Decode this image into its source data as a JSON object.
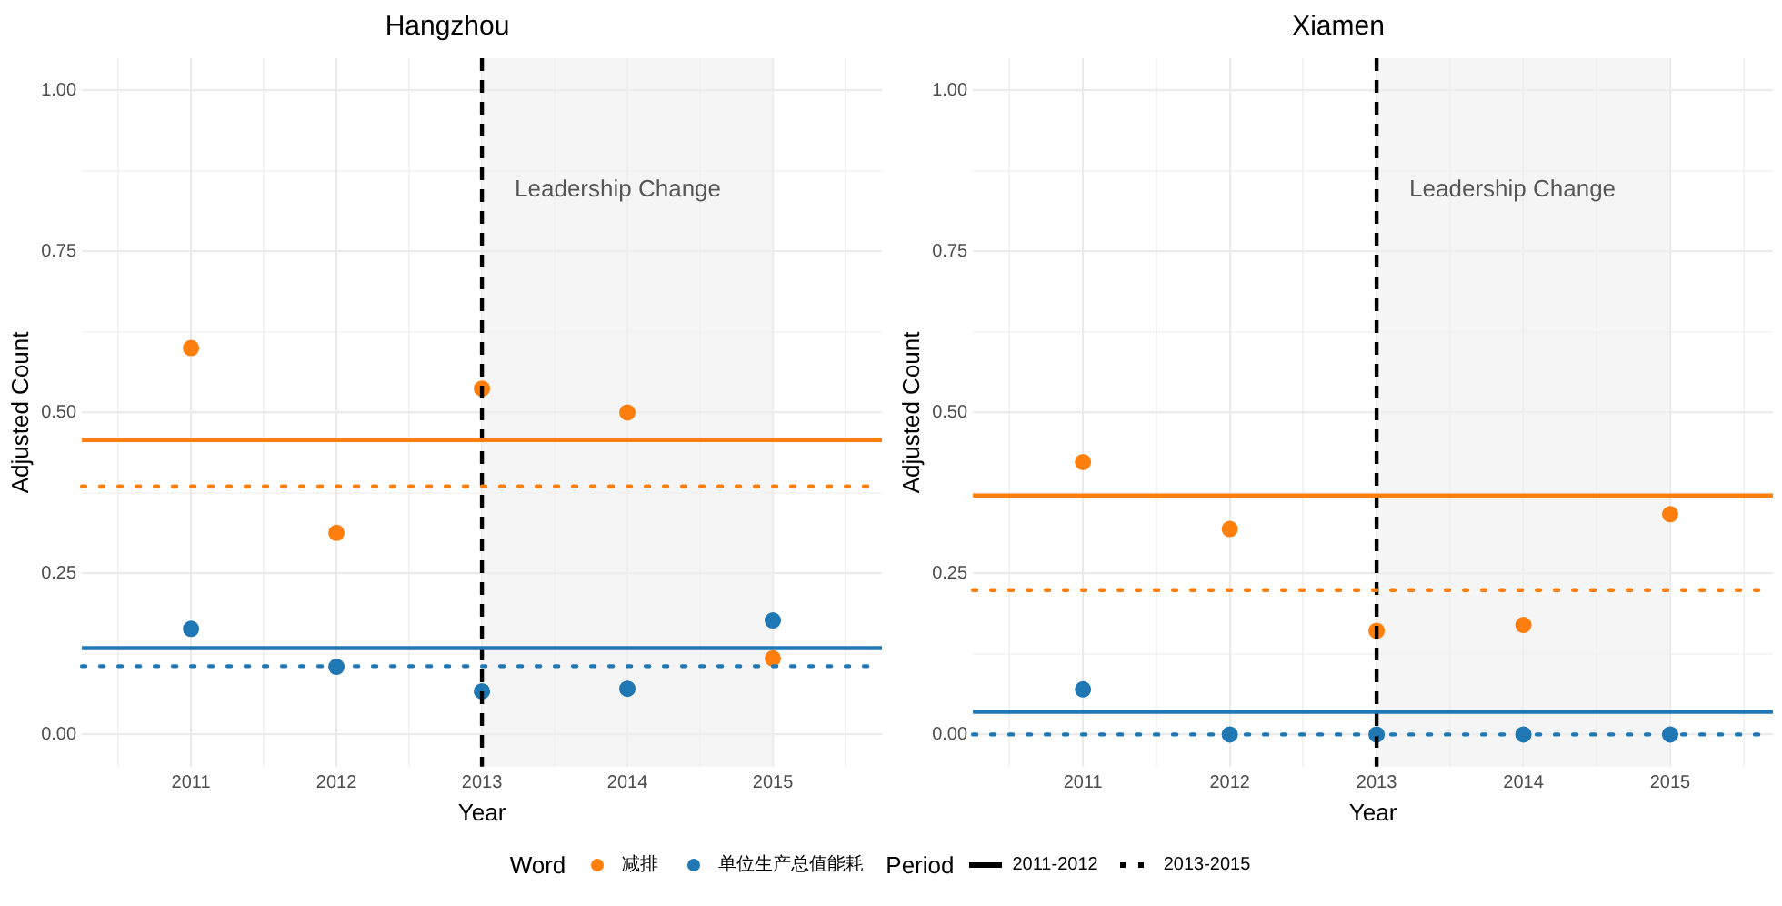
{
  "chart_data": [
    {
      "type": "scatter",
      "title": "Hangzhou",
      "xlabel": "Year",
      "ylabel": "Adjusted Count",
      "legend": "bottom",
      "legend_title": "Word",
      "grid": true,
      "marker": "circle",
      "x": [
        2011,
        2012,
        2013,
        2014,
        2015
      ],
      "xlim": [
        2010.25,
        2015.75
      ],
      "xticks": [
        {
          "value": 2010.5,
          "label": null
        },
        2011,
        {
          "value": 2011.5,
          "label": null
        },
        2012,
        {
          "value": 2012.5,
          "label": null
        },
        2013,
        {
          "value": 2013.5,
          "label": null
        },
        2014,
        {
          "value": 2014.5,
          "label": null
        },
        2015,
        {
          "value": 2015.5,
          "label": null
        }
      ],
      "ylim": [
        -0.05,
        1.05
      ],
      "yticks": [
        {
          "value": 0,
          "label": "0.00"
        },
        {
          "value": 0.125,
          "label": null
        },
        {
          "value": 0.25,
          "label": "0.25"
        },
        {
          "value": 0.375,
          "label": null
        },
        {
          "value": 0.5,
          "label": "0.50"
        },
        {
          "value": 0.625,
          "label": null
        },
        {
          "value": 0.75,
          "label": "0.75"
        },
        {
          "value": 0.875,
          "label": null
        },
        {
          "value": 1,
          "label": "1.00"
        }
      ],
      "series": [
        {
          "name": "减排",
          "color": "#ff7f0e",
          "values": [
            0.6,
            0.313,
            0.537,
            0.5,
            0.118
          ]
        },
        {
          "name": "单位生产总值能耗",
          "color": "#1f77b4",
          "values": [
            0.164,
            0.105,
            0.067,
            0.071,
            0.177
          ]
        }
      ],
      "ref_lines": [
        {
          "axis": "x",
          "value": 2013,
          "color": "#000000",
          "line_style": "dashed"
        },
        {
          "axis": "y",
          "value": 0.457,
          "color": "#ff7f0e",
          "line_style": "solid"
        },
        {
          "axis": "y",
          "value": 0.385,
          "color": "#ff7f0e",
          "line_style": "dotted"
        },
        {
          "axis": "y",
          "value": 0.134,
          "color": "#1f77b4",
          "line_style": "solid"
        },
        {
          "axis": "y",
          "value": 0.106,
          "color": "#1f77b4",
          "line_style": "dotted"
        }
      ],
      "bands": [
        {
          "axis": "x",
          "from": 2013,
          "to": 2015,
          "label": "Leadership Change",
          "color": "#f0f0f0"
        }
      ],
      "annotations": [
        "Period",
        "2011-2012",
        "2013-2015"
      ]
    },
    {
      "type": "scatter",
      "title": "Xiamen",
      "xlabel": "Year",
      "ylabel": "Adjusted Count",
      "grid": true,
      "marker": "circle",
      "x": [
        2011,
        2012,
        2013,
        2014,
        2015
      ],
      "xlim": [
        2010.25,
        2015.7
      ],
      "xticks": [
        {
          "value": 2010.5,
          "label": null
        },
        2011,
        {
          "value": 2011.5,
          "label": null
        },
        2012,
        {
          "value": 2012.5,
          "label": null
        },
        2013,
        {
          "value": 2013.5,
          "label": null
        },
        2014,
        {
          "value": 2014.5,
          "label": null
        },
        2015,
        {
          "value": 2015.5,
          "label": null
        }
      ],
      "ylim": [
        -0.05,
        1.05
      ],
      "yticks": [
        {
          "value": 0,
          "label": "0.00"
        },
        {
          "value": 0.125,
          "label": null
        },
        {
          "value": 0.25,
          "label": "0.25"
        },
        {
          "value": 0.375,
          "label": null
        },
        {
          "value": 0.5,
          "label": "0.50"
        },
        {
          "value": 0.625,
          "label": null
        },
        {
          "value": 0.75,
          "label": "0.75"
        },
        {
          "value": 0.875,
          "label": null
        },
        {
          "value": 1,
          "label": "1.00"
        }
      ],
      "series": [
        {
          "color": "#ff7f0e",
          "values": [
            0.423,
            0.319,
            0.161,
            0.17,
            0.342
          ]
        },
        {
          "color": "#1f77b4",
          "values": [
            0.07,
            0,
            0,
            0,
            0
          ]
        }
      ],
      "ref_lines": [
        {
          "axis": "x",
          "value": 2013,
          "color": "#000000",
          "line_style": "dashed"
        },
        {
          "axis": "y",
          "value": 0.371,
          "color": "#ff7f0e",
          "line_style": "solid"
        },
        {
          "axis": "y",
          "value": 0.224,
          "color": "#ff7f0e",
          "line_style": "dotted"
        },
        {
          "axis": "y",
          "value": 0.035,
          "color": "#1f77b4",
          "line_style": "solid"
        },
        {
          "axis": "y",
          "value": 0,
          "color": "#1f77b4",
          "line_style": "dotted"
        }
      ],
      "bands": [
        {
          "axis": "x",
          "from": 2013,
          "to": 2015,
          "label": "Leadership Change",
          "color": "#f0f0f0"
        }
      ]
    }
  ]
}
